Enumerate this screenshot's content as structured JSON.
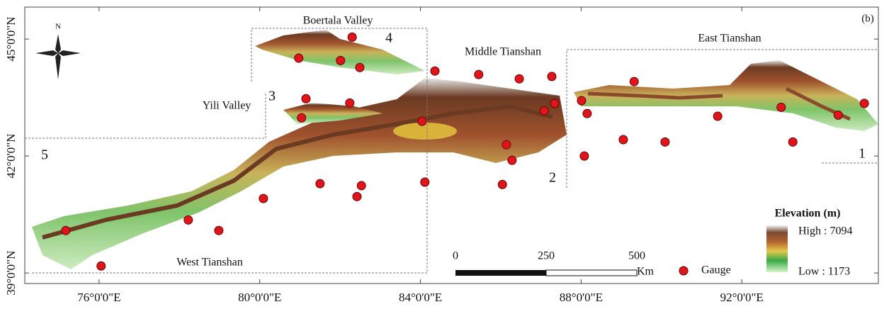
{
  "map": {
    "panel_label": "(b)",
    "regions": [
      {
        "number": "1",
        "name": "East Tianshan"
      },
      {
        "number": "2",
        "name": "Middle Tianshan"
      },
      {
        "number": "3",
        "name": "Yili Valley"
      },
      {
        "number": "4",
        "name": "Boertala Valley"
      },
      {
        "number": "5",
        "name": "West Tianshan"
      }
    ],
    "north": "N",
    "xlim": [
      74.15,
      95.4
    ],
    "ylim": [
      38.73,
      45.82
    ],
    "xticks": [
      {
        "value": 76,
        "label": "76°0'0\"E"
      },
      {
        "value": 80,
        "label": "80°0'0\"E"
      },
      {
        "value": 84,
        "label": "84°0'0\"E"
      },
      {
        "value": 88,
        "label": "88°0'0\"E"
      },
      {
        "value": 92,
        "label": "92°0'0\"E"
      }
    ],
    "yticks": [
      {
        "value": 45,
        "label": "45°0'0\"N"
      },
      {
        "value": 42,
        "label": "42°0'0\"N"
      },
      {
        "value": 39,
        "label": "39°0'0\"N"
      }
    ],
    "legend": {
      "title": "Elevation (m)",
      "high": "High : 7094",
      "low": "Low : 1173",
      "gauge": "Gauge"
    },
    "scale_bar": {
      "ticks": [
        0,
        250,
        500
      ],
      "unit": "Km"
    },
    "gauge_color": "#e0141b",
    "gauges": [
      {
        "lon": 82.3,
        "lat": 45.05
      },
      {
        "lon": 80.97,
        "lat": 44.51
      },
      {
        "lon": 82.01,
        "lat": 44.45
      },
      {
        "lon": 82.49,
        "lat": 44.27
      },
      {
        "lon": 84.36,
        "lat": 44.18
      },
      {
        "lon": 85.45,
        "lat": 44.09
      },
      {
        "lon": 86.46,
        "lat": 43.98
      },
      {
        "lon": 87.27,
        "lat": 44.04
      },
      {
        "lon": 89.32,
        "lat": 43.91
      },
      {
        "lon": 81.15,
        "lat": 43.47
      },
      {
        "lon": 82.24,
        "lat": 43.36
      },
      {
        "lon": 81.04,
        "lat": 42.98
      },
      {
        "lon": 84.04,
        "lat": 42.89
      },
      {
        "lon": 87.08,
        "lat": 43.16
      },
      {
        "lon": 87.34,
        "lat": 43.35
      },
      {
        "lon": 88.01,
        "lat": 43.42
      },
      {
        "lon": 88.15,
        "lat": 43.09
      },
      {
        "lon": 91.4,
        "lat": 43.02
      },
      {
        "lon": 92.98,
        "lat": 43.25
      },
      {
        "lon": 94.4,
        "lat": 43.05
      },
      {
        "lon": 95.05,
        "lat": 43.35
      },
      {
        "lon": 89.05,
        "lat": 42.42
      },
      {
        "lon": 90.09,
        "lat": 42.36
      },
      {
        "lon": 93.27,
        "lat": 42.36
      },
      {
        "lon": 86.14,
        "lat": 42.29
      },
      {
        "lon": 86.28,
        "lat": 41.89
      },
      {
        "lon": 88.08,
        "lat": 42.0
      },
      {
        "lon": 81.5,
        "lat": 41.29
      },
      {
        "lon": 82.53,
        "lat": 41.24
      },
      {
        "lon": 84.11,
        "lat": 41.33
      },
      {
        "lon": 86.04,
        "lat": 41.27
      },
      {
        "lon": 82.42,
        "lat": 40.96
      },
      {
        "lon": 80.09,
        "lat": 40.91
      },
      {
        "lon": 78.22,
        "lat": 40.36
      },
      {
        "lon": 78.98,
        "lat": 40.09
      },
      {
        "lon": 75.17,
        "lat": 40.09
      },
      {
        "lon": 76.05,
        "lat": 39.18
      }
    ]
  }
}
